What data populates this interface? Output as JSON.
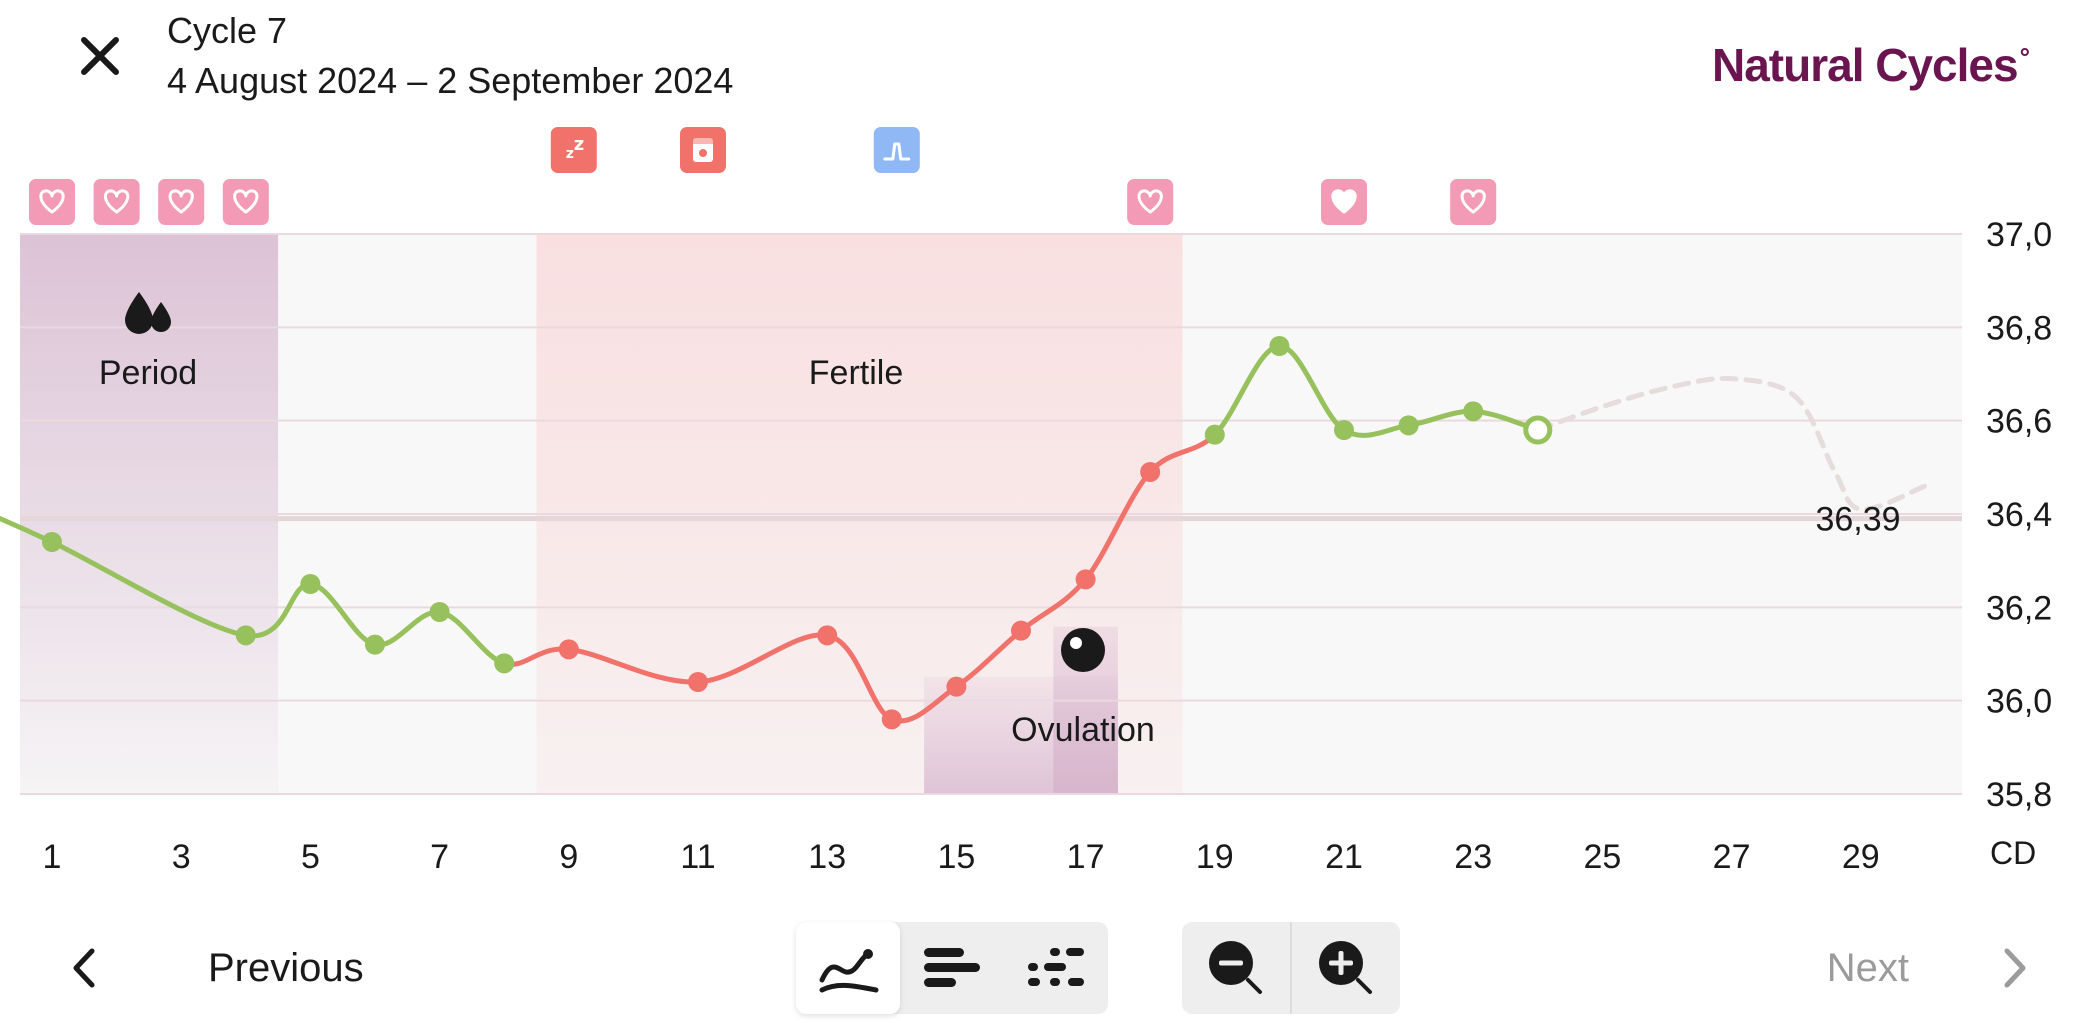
{
  "header": {
    "cycle_title": "Cycle 7",
    "cycle_dates": "4 August 2024 – 2 September 2024",
    "brand": "Natural Cycles",
    "brand_mark": "°"
  },
  "phases": {
    "period_label": "Period",
    "fertile_label": "Fertile",
    "ovulation_label": "Ovulation"
  },
  "chart_data": {
    "type": "line",
    "x_axis_unit": "CD",
    "x_tick_labels": [
      "1",
      "3",
      "5",
      "7",
      "9",
      "11",
      "13",
      "15",
      "17",
      "19",
      "21",
      "23",
      "25",
      "27",
      "29"
    ],
    "y_tick_labels": [
      "37,0",
      "36,8",
      "36,6",
      "36,4",
      "36,2",
      "36,0",
      "35,8"
    ],
    "y_range": [
      35.8,
      37.0
    ],
    "cover_line_value": 36.39,
    "cover_line_label": "36,39",
    "period_days": [
      1,
      4
    ],
    "fertile_days": [
      9,
      18
    ],
    "ovulation_day": 17,
    "series": [
      {
        "x": [
          1,
          4,
          5,
          6,
          7,
          8,
          9,
          11,
          13,
          14,
          15,
          16,
          17,
          18,
          19,
          20,
          21,
          22,
          23,
          24
        ],
        "y": [
          36.34,
          36.14,
          36.25,
          36.12,
          36.19,
          36.08,
          36.11,
          36.04,
          36.14,
          35.96,
          36.03,
          36.15,
          36.26,
          36.49,
          36.57,
          36.76,
          36.58,
          36.59,
          36.62,
          36.58
        ],
        "status": [
          "green",
          "green",
          "green",
          "green",
          "green",
          "green",
          "red",
          "red",
          "red",
          "red",
          "red",
          "red",
          "red",
          "red",
          "green",
          "green",
          "green",
          "green",
          "green",
          "green"
        ]
      }
    ],
    "prediction": {
      "x": [
        24,
        25,
        26,
        27,
        28,
        28.6,
        29,
        30
      ],
      "y": [
        36.58,
        36.63,
        36.67,
        36.69,
        36.65,
        36.49,
        36.41,
        36.46
      ]
    },
    "heart_days": [
      {
        "day": 1,
        "filled": false
      },
      {
        "day": 2,
        "filled": false
      },
      {
        "day": 3,
        "filled": false
      },
      {
        "day": 4,
        "filled": false
      },
      {
        "day": 18,
        "filled": false
      },
      {
        "day": 21,
        "filled": true
      },
      {
        "day": 23,
        "filled": false
      }
    ],
    "tracker_icons": [
      {
        "day": 9,
        "icon": "sleep-icon",
        "color": "#f0726b"
      },
      {
        "day": 11,
        "icon": "test-icon",
        "color": "#f0726b"
      },
      {
        "day": 14,
        "icon": "lh-test-icon",
        "color": "#8fb8f5"
      }
    ],
    "colors": {
      "green": "#97c15c",
      "red": "#f0726b",
      "heart_bg": "#f29ab6",
      "period_shade": "#dcc3d6",
      "fertile_shade": "#f9dfe0",
      "ovulation_shade": "#dcbfd4",
      "plot_bg": "#f8f8f8",
      "grid": "#ead9de",
      "prediction": "#e6dcdc"
    }
  },
  "bottom": {
    "previous_label": "Previous",
    "next_label": "Next"
  }
}
